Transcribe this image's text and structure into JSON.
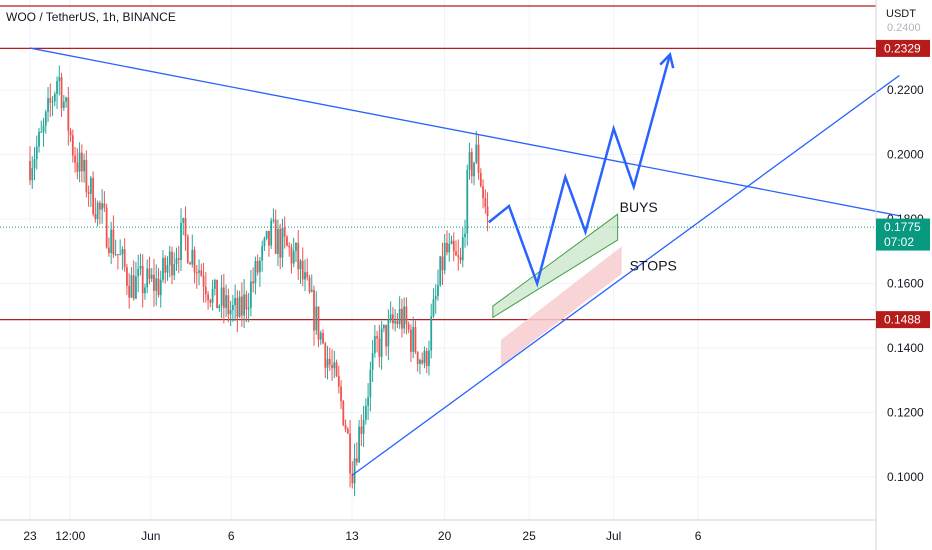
{
  "header": {
    "title": "WOO / TetherUS, 1h, BINANCE",
    "unit": "USDT"
  },
  "colors": {
    "up": "#26a69a",
    "down": "#ef5350",
    "trendline": "#2962ff",
    "hline": "#b71c1c",
    "price_box": "#089981",
    "buys_fill": "#c8e6c9",
    "buys_border": "#43a047",
    "stops_fill": "#f8cdd0",
    "axis_text": "#131722"
  },
  "chart_data": {
    "type": "candlestick",
    "y_axis": {
      "ticks": [
        0.1,
        0.12,
        0.14,
        0.16,
        0.18,
        0.2,
        0.22
      ],
      "tick_labels": [
        "0.1000",
        "0.1200",
        "0.1400",
        "0.1600",
        "0.1800",
        "0.2000",
        "0.2200"
      ],
      "range": [
        0.085,
        0.245
      ],
      "partial_top_label": "0.2400"
    },
    "x_axis": {
      "labels": [
        "23",
        "12:00",
        "Jun",
        "6",
        "13",
        "20",
        "25",
        "Jul",
        "6"
      ],
      "label_days": [
        0,
        0.5,
        1.5,
        2.5,
        4,
        5.15,
        6.2,
        7.25,
        8.3
      ]
    },
    "price_samples": [
      [
        0,
        0.198
      ],
      [
        0.15,
        0.205
      ],
      [
        0.35,
        0.225
      ],
      [
        0.55,
        0.2
      ],
      [
        0.9,
        0.18
      ],
      [
        1.25,
        0.16
      ],
      [
        1.6,
        0.16
      ],
      [
        1.9,
        0.175
      ],
      [
        2.3,
        0.155
      ],
      [
        2.6,
        0.15
      ],
      [
        3.0,
        0.175
      ],
      [
        3.3,
        0.168
      ],
      [
        3.6,
        0.145
      ],
      [
        3.9,
        0.12
      ],
      [
        4.0,
        0.103
      ],
      [
        4.3,
        0.14
      ],
      [
        4.6,
        0.15
      ],
      [
        4.9,
        0.135
      ],
      [
        5.15,
        0.17
      ],
      [
        5.35,
        0.165
      ],
      [
        5.45,
        0.195
      ],
      [
        5.55,
        0.2
      ],
      [
        5.7,
        0.177
      ]
    ],
    "levels": [
      {
        "name": "upper",
        "value": 0.2329,
        "label": "0.2329",
        "style": "hline"
      },
      {
        "name": "current",
        "value": 0.1775,
        "label": "0.1775",
        "sub_label": "07:02",
        "style": "price"
      },
      {
        "name": "support",
        "value": 0.1488,
        "label": "0.1488",
        "style": "hline"
      }
    ],
    "trendlines": [
      {
        "name": "descending-resistance",
        "from": [
          0,
          0.233
        ],
        "to": [
          10.8,
          0.181
        ]
      },
      {
        "name": "ascending-support",
        "from": [
          4.0,
          0.1005
        ],
        "to": [
          10.8,
          0.2245
        ]
      }
    ],
    "projection_path": [
      [
        5.7,
        0.179
      ],
      [
        5.95,
        0.184
      ],
      [
        6.3,
        0.16
      ],
      [
        6.65,
        0.193
      ],
      [
        6.9,
        0.176
      ],
      [
        7.25,
        0.208
      ],
      [
        7.5,
        0.19
      ],
      [
        7.95,
        0.231
      ]
    ],
    "zones": [
      {
        "name": "buys-zone",
        "label": "BUYS",
        "start_day": 5.75,
        "end_day": 7.3,
        "low_at_start": 0.1495,
        "high_at_start": 0.153,
        "low_at_end": 0.1735,
        "high_at_end": 0.1815
      },
      {
        "name": "stops-zone",
        "label": "STOPS",
        "start_day": 5.85,
        "end_day": 7.35,
        "low_at_start": 0.1345,
        "high_at_start": 0.1425,
        "low_at_end": 0.163,
        "high_at_end": 0.1715
      }
    ]
  }
}
